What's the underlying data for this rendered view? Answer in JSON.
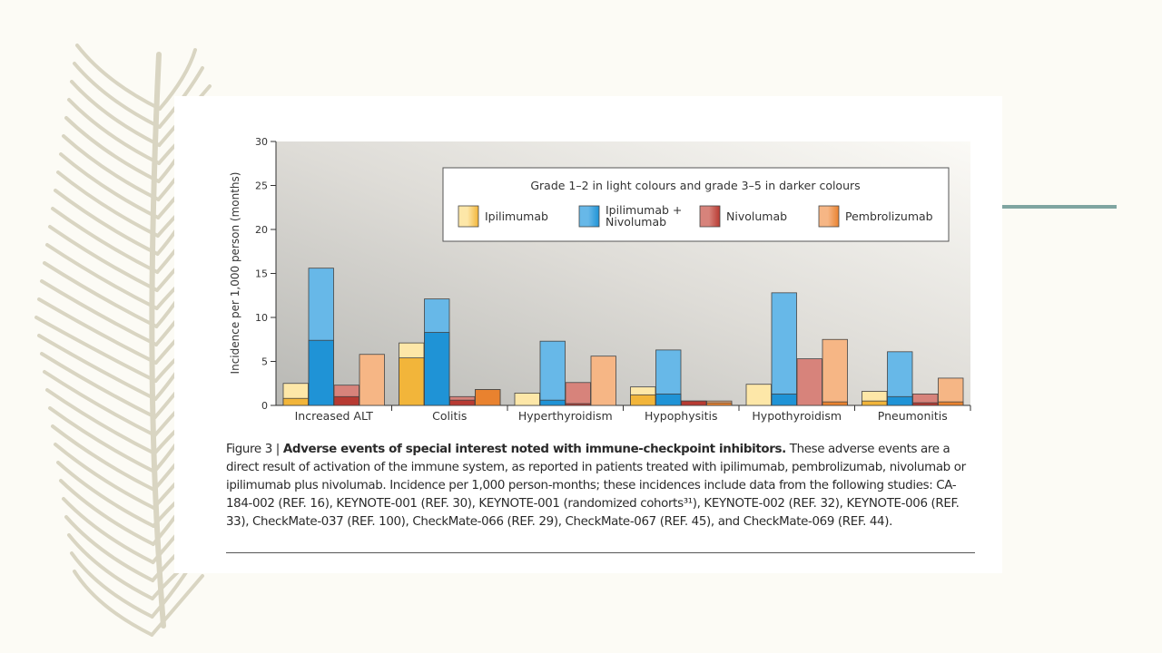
{
  "colors": {
    "background": "#fcfbf5",
    "accent_line": "#7fa5a1",
    "ipilimumab_light": "#fde7a8",
    "ipilimumab_dark": "#f2b53a",
    "combo_light": "#67b8e8",
    "combo_dark": "#1f93d6",
    "nivolumab_light": "#d7837b",
    "nivolumab_dark": "#b73a32",
    "pembrolizumab_light": "#f6b685",
    "pembrolizumab_dark": "#e9822f"
  },
  "caption": {
    "label": "Figure 3 | ",
    "title": "Adverse events of special interest noted with immune-checkpoint inhibitors.",
    "body": " These adverse events are a direct result of activation of the immune system, as reported in patients treated with ipilimumab, pembrolizumab, nivolumab or ipilimumab plus nivolumab. Incidence per 1,000 person-months; these incidences include data from the following studies: CA-184-002 (REF. 16), KEYNOTE-001 (REF. 30), KEYNOTE-001 (randomized cohorts³¹), KEYNOTE-002 (REF. 32), KEYNOTE-006 (REF. 33), CheckMate-037 (REF. 100), CheckMate-066 (REF. 29), CheckMate-067 (REF. 45), and CheckMate-069 (REF. 44)."
  },
  "chart_data": {
    "type": "bar",
    "title": "",
    "xlabel": "",
    "ylabel": "Incidence per 1,000 person (months)",
    "ylim": [
      0,
      30
    ],
    "yticks": [
      0,
      5,
      10,
      15,
      20,
      25,
      30
    ],
    "legend": {
      "title": "Grade 1–2 in light colours and grade 3–5 in darker colours",
      "placement": "top-right"
    },
    "categories": [
      "Increased ALT",
      "Colitis",
      "Hyperthyroidism",
      "Hypophysitis",
      "Hypothyroidism",
      "Pneumonitis"
    ],
    "series": [
      {
        "name": "Ipilimumab",
        "total": [
          2.5,
          7.1,
          1.4,
          2.1,
          2.4,
          1.6
        ],
        "grade3_5": [
          0.8,
          5.4,
          0.0,
          1.2,
          0.0,
          0.5
        ]
      },
      {
        "name": "Ipilimumab + Nivolumab",
        "total": [
          15.6,
          12.1,
          7.3,
          6.3,
          12.8,
          6.1
        ],
        "grade3_5": [
          7.4,
          8.3,
          0.6,
          1.3,
          1.3,
          1.0
        ]
      },
      {
        "name": "Nivolumab",
        "total": [
          2.3,
          1.0,
          2.6,
          0.5,
          5.3,
          1.3
        ],
        "grade3_5": [
          1.0,
          0.6,
          0.2,
          0.5,
          0.0,
          0.3
        ]
      },
      {
        "name": "Pembrolizumab",
        "total": [
          5.8,
          1.8,
          5.6,
          0.5,
          7.5,
          3.1
        ],
        "grade3_5": [
          0.0,
          1.8,
          0.0,
          0.3,
          0.4,
          0.4
        ]
      }
    ]
  }
}
